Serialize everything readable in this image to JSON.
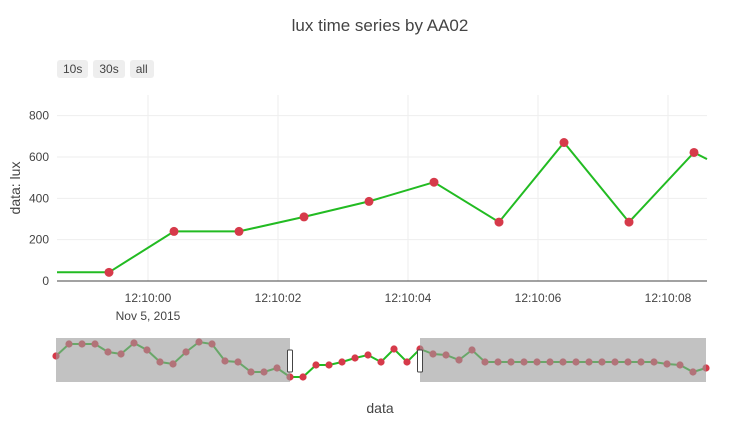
{
  "title": "lux time series by AA02",
  "range_buttons": [
    "10s",
    "30s",
    "all"
  ],
  "colors": {
    "line": "#22bb22",
    "marker": "#d63a4a",
    "marker_dim": "#8a2a34",
    "grid": "#eeeeee",
    "mask": "#999999"
  },
  "chart_data": {
    "type": "line",
    "title": "lux time series by AA02",
    "xlabel": "data",
    "ylabel": "data: lux",
    "x_date": "Nov 5, 2015",
    "xlim": [
      "12:09:58.600",
      "12:10:08.600"
    ],
    "ylim": [
      0,
      900
    ],
    "grid": true,
    "y_ticks": [
      0,
      200,
      400,
      600,
      800
    ],
    "x_ticks": [
      "12:10:00",
      "12:10:02",
      "12:10:04",
      "12:10:06",
      "12:10:08"
    ],
    "x": [
      "12:09:58.600",
      "12:09:59.400",
      "12:10:00.400",
      "12:10:01.400",
      "12:10:02.400",
      "12:10:03.400",
      "12:10:04.400",
      "12:10:05.400",
      "12:10:06.400",
      "12:10:07.400",
      "12:10:08.400",
      "12:10:08.600"
    ],
    "y": [
      42,
      42,
      240,
      240,
      310,
      385,
      478,
      285,
      670,
      285,
      622,
      590
    ],
    "marker_points": [
      false,
      true,
      true,
      true,
      true,
      true,
      true,
      true,
      true,
      true,
      true,
      false
    ],
    "range_slider": {
      "values": [
        120,
        180,
        180,
        180,
        140,
        130,
        185,
        150,
        90,
        80,
        140,
        190,
        180,
        95,
        90,
        40,
        40,
        60,
        15,
        15,
        75,
        75,
        90,
        110,
        125,
        90,
        155,
        90,
        155,
        130,
        125,
        100,
        150,
        90,
        90,
        90,
        90,
        90,
        90,
        90,
        90,
        90,
        90,
        90,
        90,
        90,
        90,
        80,
        75,
        40,
        60
      ],
      "selected_from_index": 18,
      "selected_to_index": 28
    }
  }
}
